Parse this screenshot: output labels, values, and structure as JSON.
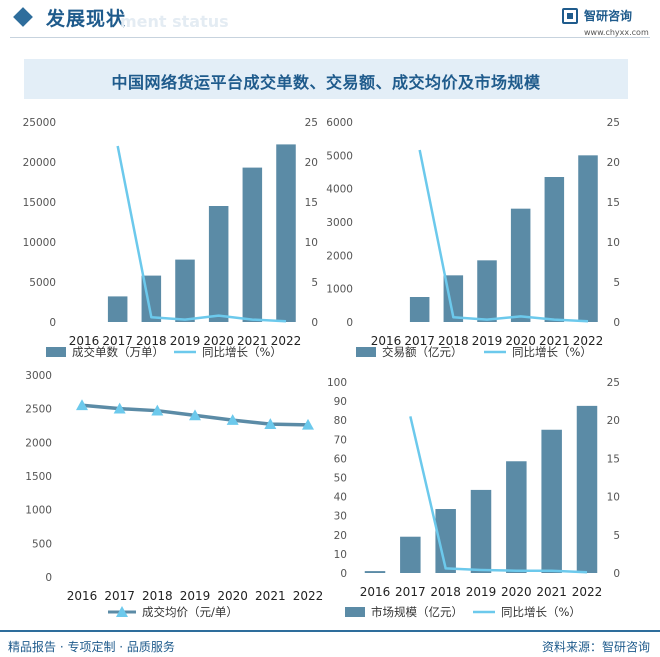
{
  "header": {
    "section_title": "发展现状",
    "section_subtitle": "ment status",
    "logo_name": "智研咨询",
    "logo_url": "www.chyxx.com"
  },
  "chart_title": "中国网络货运平台成交单数、交易额、成交均价及市场规模",
  "colors": {
    "bar": "#5b8ba6",
    "line": "#6cc9ec",
    "avg_line": "#5b8ba6",
    "marker": "#6cc9ec"
  },
  "chart_data": [
    {
      "type": "bar",
      "categories": [
        "2016",
        "2017",
        "2018",
        "2019",
        "2020",
        "2021",
        "2022"
      ],
      "series": [
        {
          "name": "成交单数（万单）",
          "axis": "left",
          "values": [
            0,
            3200,
            5800,
            7800,
            14500,
            19300,
            22200
          ]
        },
        {
          "name": "同比增长（%）",
          "type": "line",
          "axis": "right",
          "values": [
            null,
            22,
            0.6,
            0.3,
            0.8,
            0.3,
            0.1
          ]
        }
      ],
      "yticks_left": [
        "25000",
        "20000",
        "15000",
        "10000",
        "5000",
        "0"
      ],
      "yticks_right": [
        "25",
        "20",
        "15",
        "10",
        "5",
        "0"
      ],
      "ylim_left": [
        0,
        25000
      ],
      "ylim_right": [
        0,
        25
      ]
    },
    {
      "type": "bar",
      "categories": [
        "2016",
        "2017",
        "2018",
        "2019",
        "2020",
        "2021",
        "2022"
      ],
      "series": [
        {
          "name": "交易额（亿元）",
          "axis": "left",
          "values": [
            0,
            750,
            1400,
            1850,
            3400,
            4350,
            5000
          ]
        },
        {
          "name": "同比增长（%）",
          "type": "line",
          "axis": "right",
          "values": [
            null,
            21.5,
            0.6,
            0.3,
            0.7,
            0.3,
            0.1
          ]
        }
      ],
      "yticks_left": [
        "6000",
        "5000",
        "4000",
        "3000",
        "2000",
        "1000",
        "0"
      ],
      "yticks_right": [
        "25",
        "20",
        "15",
        "10",
        "5",
        "0"
      ],
      "ylim_left": [
        0,
        6000
      ],
      "ylim_right": [
        0,
        25
      ]
    },
    {
      "type": "line",
      "categories": [
        "2016",
        "2017",
        "2018",
        "2019",
        "2020",
        "2021",
        "2022"
      ],
      "series": [
        {
          "name": "成交均价（元/单）",
          "values": [
            2550,
            2500,
            2470,
            2400,
            2330,
            2270,
            2260
          ]
        }
      ],
      "yticks_left": [
        "3000",
        "2500",
        "2000",
        "1500",
        "1000",
        "500",
        "0"
      ],
      "ylim_left": [
        0,
        3000
      ]
    },
    {
      "type": "bar",
      "categories": [
        "2016",
        "2017",
        "2018",
        "2019",
        "2020",
        "2021",
        "2022"
      ],
      "series": [
        {
          "name": "市场规模（亿元）",
          "axis": "left",
          "values": [
            1,
            19,
            33.5,
            43.5,
            58.5,
            75,
            87.5
          ]
        },
        {
          "name": "同比增长（%）",
          "type": "line",
          "axis": "right",
          "values": [
            null,
            20.5,
            0.6,
            0.4,
            0.3,
            0.3,
            0.1
          ]
        }
      ],
      "yticks_left": [
        "100",
        "90",
        "80",
        "70",
        "60",
        "50",
        "40",
        "30",
        "20",
        "10",
        "0"
      ],
      "yticks_right": [
        "25",
        "20",
        "15",
        "10",
        "5",
        "0"
      ],
      "ylim_left": [
        0,
        100
      ],
      "ylim_right": [
        0,
        25
      ]
    }
  ],
  "footer": {
    "left": "精品报告 · 专项定制 · 品质服务",
    "right": "资料来源：智研咨询"
  }
}
